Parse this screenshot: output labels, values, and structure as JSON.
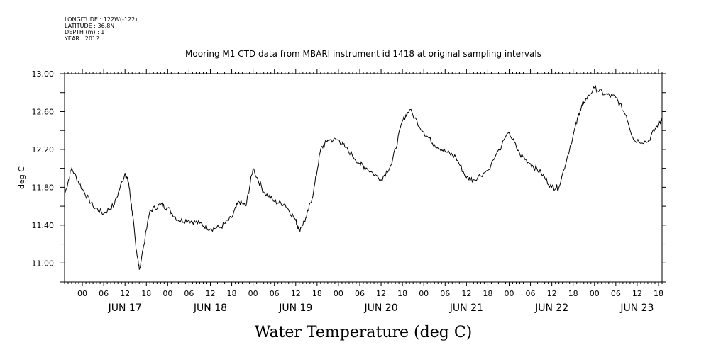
{
  "header": {
    "lines": [
      "LONGITUDE : 122W(-122)",
      "LATITUDE : 36.8N",
      "DEPTH (m) : 1",
      "YEAR : 2012"
    ]
  },
  "chart_data": {
    "type": "line",
    "title": "Mooring M1 CTD data from MBARI instrument id 1418 at original sampling intervals",
    "ylabel": "deg C",
    "xlabel": "Water Temperature (deg C)",
    "ylim": [
      10.8,
      13.0
    ],
    "xlim": [
      "2012-06-16T19:00",
      "2012-06-23T19:00"
    ],
    "y_ticks": [
      "11.00",
      "11.40",
      "11.80",
      "12.20",
      "12.60",
      "13.00"
    ],
    "x_hour_ticks": [
      "00",
      "06",
      "12",
      "18",
      "00",
      "06",
      "12",
      "18",
      "00",
      "06",
      "12",
      "18",
      "00",
      "06",
      "12",
      "18",
      "00",
      "06",
      "12",
      "18",
      "00",
      "06",
      "12",
      "18",
      "00",
      "06",
      "12",
      "18"
    ],
    "day_labels": [
      "JUN 17",
      "JUN 18",
      "JUN 19",
      "JUN 20",
      "JUN 21",
      "JUN 22",
      "JUN 23"
    ],
    "grid": false,
    "series": [
      {
        "x": [
          "2012-06-16T19:00",
          "2012-06-16T21:00",
          "2012-06-17T00:00",
          "2012-06-17T03:00",
          "2012-06-17T06:00",
          "2012-06-17T09:00",
          "2012-06-17T12:00",
          "2012-06-17T13:00",
          "2012-06-17T14:00",
          "2012-06-17T15:00",
          "2012-06-17T16:00",
          "2012-06-17T19:00",
          "2012-06-17T22:00",
          "2012-06-18T00:00",
          "2012-06-18T03:00",
          "2012-06-18T06:00",
          "2012-06-18T09:00",
          "2012-06-18T12:00",
          "2012-06-18T15:00",
          "2012-06-18T18:00",
          "2012-06-18T20:00",
          "2012-06-18T22:00",
          "2012-06-19T00:00",
          "2012-06-19T03:00",
          "2012-06-19T06:00",
          "2012-06-19T09:00",
          "2012-06-19T12:00",
          "2012-06-19T13:00",
          "2012-06-19T15:00",
          "2012-06-19T17:00",
          "2012-06-19T19:00",
          "2012-06-19T21:00",
          "2012-06-20T00:00",
          "2012-06-20T02:00",
          "2012-06-20T06:00",
          "2012-06-20T08:00",
          "2012-06-20T12:00",
          "2012-06-20T15:00",
          "2012-06-20T18:00",
          "2012-06-20T20:00",
          "2012-06-21T00:00",
          "2012-06-21T03:00",
          "2012-06-21T06:00",
          "2012-06-21T09:00",
          "2012-06-21T12:00",
          "2012-06-21T14:00",
          "2012-06-21T18:00",
          "2012-06-22T00:00",
          "2012-06-22T03:00",
          "2012-06-22T06:00",
          "2012-06-22T09:00",
          "2012-06-22T12:00",
          "2012-06-22T14:00",
          "2012-06-22T18:00",
          "2012-06-22T20:00",
          "2012-06-22T21:00",
          "2012-06-23T00:00",
          "2012-06-23T03:00",
          "2012-06-23T06:00",
          "2012-06-23T09:00",
          "2012-06-23T11:00",
          "2012-06-23T15:00",
          "2012-06-23T18:00",
          "2012-06-23T19:00"
        ],
        "values": [
          11.72,
          12.0,
          11.78,
          11.6,
          11.52,
          11.62,
          11.95,
          11.85,
          11.55,
          11.2,
          10.93,
          11.55,
          11.62,
          11.58,
          11.45,
          11.45,
          11.42,
          11.36,
          11.38,
          11.48,
          11.65,
          11.6,
          12.0,
          11.75,
          11.65,
          11.62,
          11.45,
          11.35,
          11.48,
          11.75,
          12.2,
          12.3,
          12.3,
          12.22,
          12.05,
          12.0,
          11.88,
          12.05,
          12.5,
          12.62,
          12.38,
          12.25,
          12.18,
          12.12,
          11.9,
          11.88,
          11.98,
          12.38,
          12.15,
          12.05,
          11.95,
          11.8,
          11.8,
          12.35,
          12.62,
          12.7,
          12.85,
          12.78,
          12.75,
          12.55,
          12.3,
          12.28,
          12.48,
          12.52
        ]
      }
    ]
  }
}
